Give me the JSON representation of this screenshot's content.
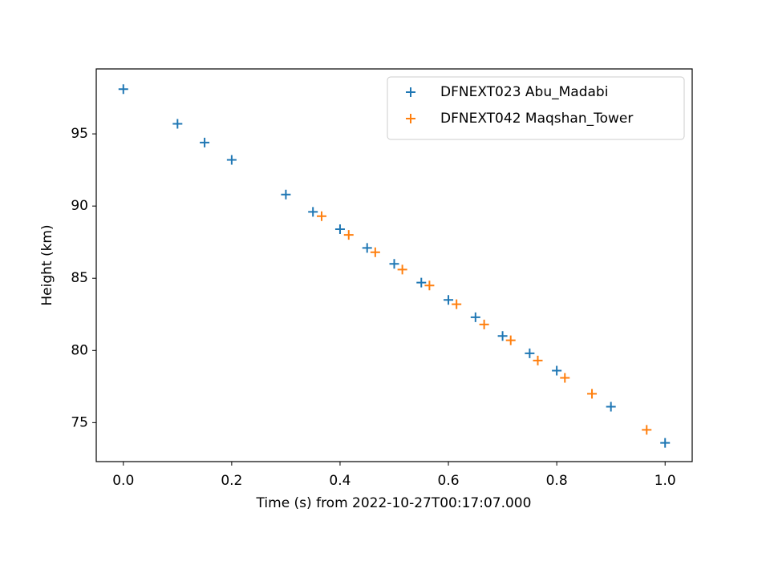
{
  "chart_data": {
    "type": "scatter",
    "xlabel": "Time (s) from 2022-10-27T00:17:07.000",
    "ylabel": "Height (km)",
    "xlim": [
      -0.05,
      1.05
    ],
    "ylim": [
      72.3,
      99.5
    ],
    "xticks": [
      {
        "value": 0,
        "label": "0.0"
      },
      {
        "value": 0.2,
        "label": "0.2"
      },
      {
        "value": 0.4,
        "label": "0.4"
      },
      {
        "value": 0.6,
        "label": "0.6"
      },
      {
        "value": 0.8,
        "label": "0.8"
      },
      {
        "value": 1,
        "label": "1.0"
      }
    ],
    "yticks": [
      75,
      80,
      85,
      90,
      95
    ],
    "legend": "upper right",
    "marker": "+",
    "series": [
      {
        "name": "DFNEXT023 Abu_Madabi",
        "color": "#1f77b4",
        "x": [
          0.0,
          0.1,
          0.15,
          0.2,
          0.3,
          0.35,
          0.4,
          0.45,
          0.5,
          0.55,
          0.6,
          0.65,
          0.7,
          0.75,
          0.8,
          0.9,
          1.0
        ],
        "values": [
          98.1,
          95.7,
          94.4,
          93.2,
          90.8,
          89.6,
          88.4,
          87.1,
          86.0,
          84.7,
          83.5,
          82.3,
          81.0,
          79.8,
          78.6,
          76.1,
          73.6
        ]
      },
      {
        "name": "DFNEXT042 Maqshan_Tower",
        "color": "#ff7f0e",
        "x": [
          0.366,
          0.416,
          0.465,
          0.515,
          0.565,
          0.615,
          0.666,
          0.715,
          0.765,
          0.815,
          0.865,
          0.966
        ],
        "values": [
          89.3,
          88.0,
          86.8,
          85.6,
          84.5,
          83.2,
          81.8,
          80.7,
          79.3,
          78.1,
          77.0,
          74.5
        ]
      }
    ]
  }
}
